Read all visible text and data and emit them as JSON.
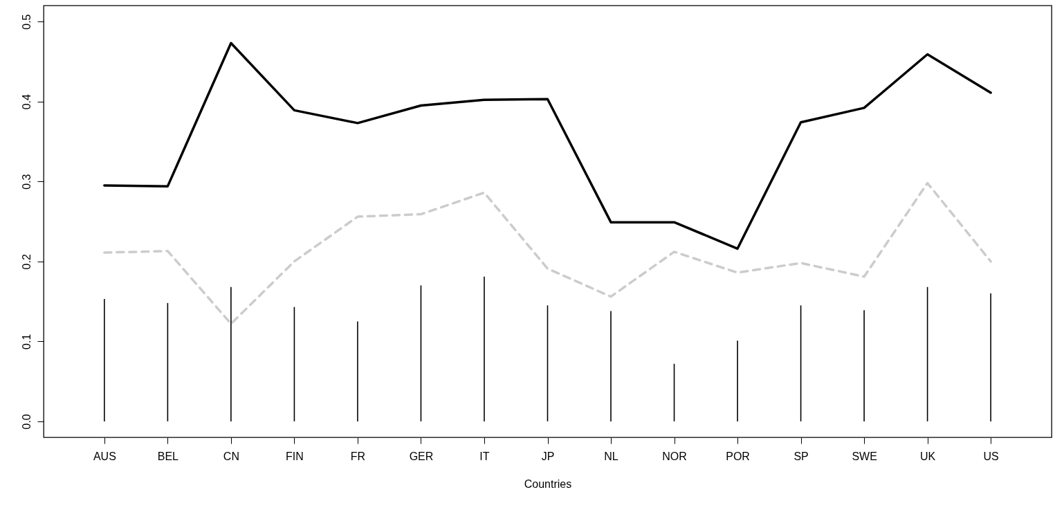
{
  "chart_data": {
    "type": "line",
    "xlabel": "Countries",
    "categories": [
      "AUS",
      "BEL",
      "CN",
      "FIN",
      "FR",
      "GER",
      "IT",
      "JP",
      "NL",
      "NOR",
      "POR",
      "SP",
      "SWE",
      "UK",
      "US"
    ],
    "series": [
      {
        "color": "#000000",
        "line_style": "solid",
        "values": [
          0.295,
          0.294,
          0.473,
          0.389,
          0.373,
          0.395,
          0.402,
          0.403,
          0.249,
          0.249,
          0.216,
          0.374,
          0.392,
          0.459,
          0.411
        ]
      },
      {
        "color": "#cccccc",
        "line_style": "dashed",
        "values": [
          0.211,
          0.213,
          0.122,
          0.2,
          0.256,
          0.259,
          0.286,
          0.191,
          0.156,
          0.212,
          0.186,
          0.198,
          0.181,
          0.298,
          0.2
        ]
      },
      {
        "type": "bar",
        "color": "#000000",
        "values": [
          0.153,
          0.148,
          0.168,
          0.143,
          0.125,
          0.17,
          0.181,
          0.145,
          0.138,
          0.072,
          0.101,
          0.145,
          0.139,
          0.168,
          0.16
        ]
      }
    ],
    "ylim": [
      -0.02,
      0.52
    ],
    "yticks": [
      {
        "value": 0,
        "label": "0.0"
      },
      0.1,
      0.2,
      0.3,
      0.4,
      0.5
    ],
    "marker": "none"
  }
}
